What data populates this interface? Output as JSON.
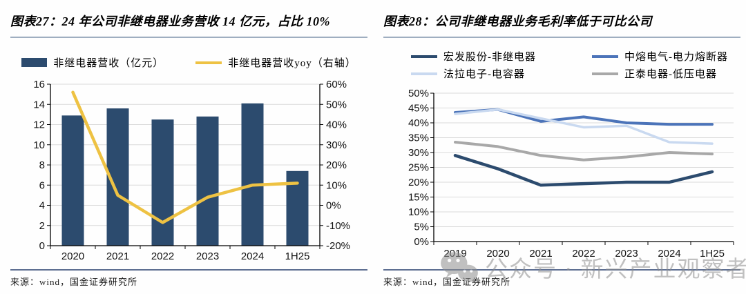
{
  "figures": [
    {
      "title": "图表27：24 年公司非继电器业务营收 14 亿元，占比 10%",
      "source": "来源：wind，国金证券研究所",
      "legend": [
        {
          "label": "非继电器营收（亿元）",
          "swatch": "bar",
          "color": "#2C4B6E"
        },
        {
          "label": "非继电器营收yoy（右轴）",
          "swatch": "line",
          "color": "#EEC243"
        }
      ]
    },
    {
      "title": "图表28：公司非继电器业务毛利率低于可比公司",
      "source": "来源：wind，国金证券研究所",
      "legend": [
        {
          "label": "宏发股份-非继电器",
          "swatch": "line",
          "color": "#2C4B6E"
        },
        {
          "label": "中熔电气-电力熔断器",
          "swatch": "line",
          "color": "#4C74B9"
        },
        {
          "label": "法拉电子-电容器",
          "swatch": "line",
          "color": "#C9D9F0"
        },
        {
          "label": "正泰电器-低压电器",
          "swatch": "line",
          "color": "#A8A8A8"
        }
      ]
    }
  ],
  "chart_data": [
    {
      "type": "bar",
      "title": "图表27：24 年公司非继电器业务营收 14 亿元，占比 10%",
      "categories": [
        "2020",
        "2021",
        "2022",
        "2023",
        "2024",
        "1H25"
      ],
      "series": [
        {
          "name": "非继电器营收（亿元）",
          "chart": "bar",
          "axis": "left",
          "color": "#2C4B6E",
          "values": [
            12.9,
            13.6,
            12.5,
            12.8,
            14.1,
            7.4
          ]
        },
        {
          "name": "非继电器营收yoy（右轴）",
          "chart": "line",
          "axis": "right",
          "color": "#EEC243",
          "values": [
            56,
            5,
            -8.5,
            4,
            10,
            11
          ]
        }
      ],
      "left_axis": {
        "min": 0,
        "max": 16,
        "step": 2,
        "ticks": [
          "0",
          "2",
          "4",
          "6",
          "8",
          "10",
          "12",
          "14",
          "16"
        ]
      },
      "right_axis": {
        "min": -20,
        "max": 60,
        "step": 10,
        "suffix": "%",
        "ticks": [
          "-20%",
          "-10%",
          "0%",
          "10%",
          "20%",
          "30%",
          "40%",
          "50%",
          "60%"
        ]
      },
      "grid": true,
      "legend_position": "top"
    },
    {
      "type": "line",
      "title": "图表28：公司非继电器业务毛利率低于可比公司",
      "categories": [
        "2019",
        "2020",
        "2021",
        "2022",
        "2023",
        "2024",
        "1H25"
      ],
      "series": [
        {
          "name": "宏发股份-非继电器",
          "color": "#2C4B6E",
          "values": [
            29,
            24.5,
            19,
            19.5,
            20,
            20,
            23.5
          ]
        },
        {
          "name": "中熔电气-电力熔断器",
          "color": "#4C74B9",
          "values": [
            43.5,
            44.5,
            40.5,
            42,
            40,
            39.5,
            39.5
          ]
        },
        {
          "name": "法拉电子-电容器",
          "color": "#C9D9F0",
          "values": [
            43,
            44.5,
            41.5,
            38.5,
            39,
            33.5,
            33
          ]
        },
        {
          "name": "正泰电器-低压电器",
          "color": "#A8A8A8",
          "values": [
            33.5,
            32,
            29,
            27.5,
            28.5,
            30,
            29.5
          ]
        }
      ],
      "y_axis": {
        "min": 0,
        "max": 50,
        "step": 5,
        "suffix": "%",
        "ticks": [
          "0%",
          "5%",
          "10%",
          "15%",
          "20%",
          "25%",
          "30%",
          "35%",
          "40%",
          "45%",
          "50%"
        ]
      },
      "grid": true,
      "legend_position": "top"
    }
  ],
  "watermark": {
    "icon": "wechat-icon",
    "text": "公众号 · 新兴产业观察者"
  },
  "colors": {
    "title_rule": "#9FAEC0",
    "bottom_rule": "#5E6F92",
    "grid": "#DADADA",
    "axis": "#000000",
    "tick_text": "#111111"
  }
}
